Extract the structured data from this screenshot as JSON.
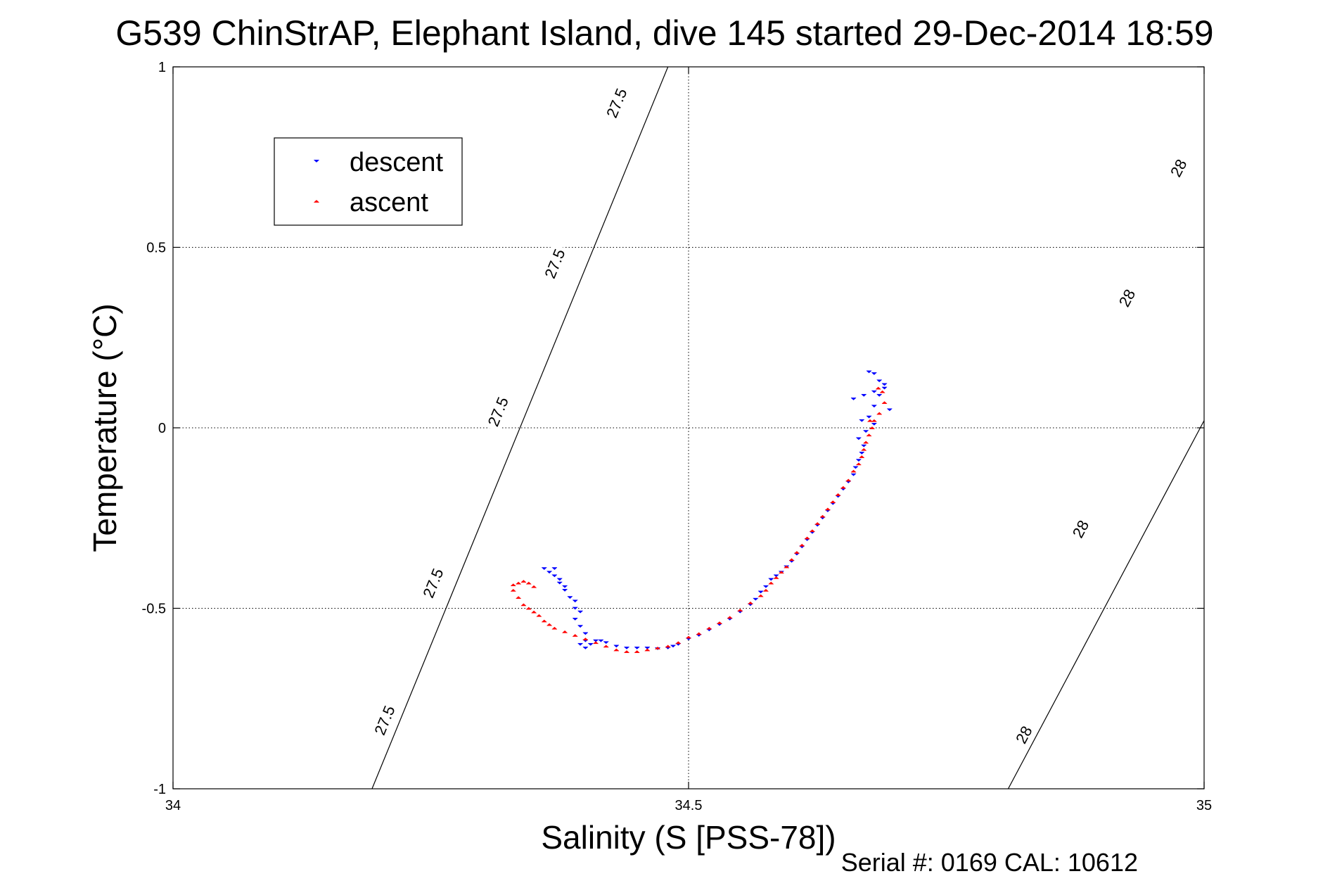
{
  "chart_data": {
    "type": "scatter",
    "title": "G539 ChinStrAP, Elephant Island, dive 145 started 29-Dec-2014 18:59",
    "xlabel": "Salinity (S [PSS-78])",
    "ylabel": "Temperature (°C)",
    "xlim": [
      34,
      35
    ],
    "ylim": [
      -1,
      1
    ],
    "x_ticks": [
      34,
      34.5,
      35
    ],
    "x_tick_labels": [
      "34",
      "34.5",
      "35"
    ],
    "y_ticks": [
      -1,
      -0.5,
      0,
      0.5,
      1
    ],
    "y_tick_labels": [
      "-1",
      "-0.5",
      "0",
      "0.5",
      "1"
    ],
    "grid": true,
    "legend_position": "top-left",
    "footer": "Serial #: 0169 CAL: 10612",
    "series": [
      {
        "name": "descent",
        "color": "#0000ff",
        "marker": "triangle-down",
        "points": [
          [
            34.36,
            -0.39
          ],
          [
            34.37,
            -0.39
          ],
          [
            34.365,
            -0.4
          ],
          [
            34.37,
            -0.41
          ],
          [
            34.375,
            -0.42
          ],
          [
            34.375,
            -0.43
          ],
          [
            34.38,
            -0.44
          ],
          [
            34.38,
            -0.45
          ],
          [
            34.385,
            -0.47
          ],
          [
            34.39,
            -0.48
          ],
          [
            34.39,
            -0.5
          ],
          [
            34.395,
            -0.51
          ],
          [
            34.39,
            -0.53
          ],
          [
            34.395,
            -0.55
          ],
          [
            34.4,
            -0.57
          ],
          [
            34.4,
            -0.59
          ],
          [
            34.395,
            -0.6
          ],
          [
            34.4,
            -0.61
          ],
          [
            34.405,
            -0.6
          ],
          [
            34.41,
            -0.59
          ],
          [
            34.415,
            -0.59
          ],
          [
            34.42,
            -0.595
          ],
          [
            34.43,
            -0.605
          ],
          [
            34.44,
            -0.61
          ],
          [
            34.45,
            -0.61
          ],
          [
            34.46,
            -0.61
          ],
          [
            34.47,
            -0.612
          ],
          [
            34.48,
            -0.61
          ],
          [
            34.485,
            -0.605
          ],
          [
            34.49,
            -0.6
          ],
          [
            34.5,
            -0.585
          ],
          [
            34.51,
            -0.575
          ],
          [
            34.52,
            -0.56
          ],
          [
            34.53,
            -0.545
          ],
          [
            34.54,
            -0.53
          ],
          [
            34.55,
            -0.51
          ],
          [
            34.56,
            -0.49
          ],
          [
            34.565,
            -0.475
          ],
          [
            34.57,
            -0.455
          ],
          [
            34.575,
            -0.44
          ],
          [
            34.58,
            -0.42
          ],
          [
            34.585,
            -0.41
          ],
          [
            34.59,
            -0.4
          ],
          [
            34.595,
            -0.385
          ],
          [
            34.6,
            -0.37
          ],
          [
            34.605,
            -0.35
          ],
          [
            34.61,
            -0.33
          ],
          [
            34.615,
            -0.31
          ],
          [
            34.62,
            -0.29
          ],
          [
            34.625,
            -0.27
          ],
          [
            34.63,
            -0.25
          ],
          [
            34.635,
            -0.23
          ],
          [
            34.64,
            -0.21
          ],
          [
            34.645,
            -0.19
          ],
          [
            34.65,
            -0.17
          ],
          [
            34.655,
            -0.15
          ],
          [
            34.66,
            -0.13
          ],
          [
            34.662,
            -0.11
          ],
          [
            34.665,
            -0.09
          ],
          [
            34.668,
            -0.07
          ],
          [
            34.67,
            -0.05
          ],
          [
            34.665,
            -0.03
          ],
          [
            34.672,
            -0.01
          ],
          [
            34.668,
            0.02
          ],
          [
            34.66,
            0.08
          ],
          [
            34.675,
            0.03
          ],
          [
            34.68,
            0.01
          ],
          [
            34.68,
            0.06
          ],
          [
            34.685,
            0.09
          ],
          [
            34.69,
            0.11
          ],
          [
            34.685,
            0.13
          ],
          [
            34.68,
            0.15
          ],
          [
            34.675,
            0.155
          ],
          [
            34.69,
            0.12
          ],
          [
            34.695,
            0.05
          ],
          [
            34.68,
            0.1
          ],
          [
            34.67,
            0.09
          ]
        ]
      },
      {
        "name": "ascent",
        "color": "#ff0000",
        "marker": "triangle-up",
        "points": [
          [
            34.33,
            -0.435
          ],
          [
            34.335,
            -0.43
          ],
          [
            34.34,
            -0.425
          ],
          [
            34.345,
            -0.43
          ],
          [
            34.35,
            -0.44
          ],
          [
            34.33,
            -0.45
          ],
          [
            34.335,
            -0.47
          ],
          [
            34.34,
            -0.49
          ],
          [
            34.345,
            -0.5
          ],
          [
            34.35,
            -0.51
          ],
          [
            34.355,
            -0.52
          ],
          [
            34.36,
            -0.535
          ],
          [
            34.365,
            -0.545
          ],
          [
            34.37,
            -0.555
          ],
          [
            34.38,
            -0.565
          ],
          [
            34.39,
            -0.575
          ],
          [
            34.4,
            -0.585
          ],
          [
            34.41,
            -0.595
          ],
          [
            34.42,
            -0.605
          ],
          [
            34.43,
            -0.615
          ],
          [
            34.44,
            -0.62
          ],
          [
            34.45,
            -0.62
          ],
          [
            34.46,
            -0.615
          ],
          [
            34.47,
            -0.61
          ],
          [
            34.48,
            -0.605
          ],
          [
            34.49,
            -0.595
          ],
          [
            34.5,
            -0.58
          ],
          [
            34.51,
            -0.57
          ],
          [
            34.52,
            -0.555
          ],
          [
            34.53,
            -0.54
          ],
          [
            34.54,
            -0.525
          ],
          [
            34.55,
            -0.505
          ],
          [
            34.56,
            -0.485
          ],
          [
            34.57,
            -0.465
          ],
          [
            34.575,
            -0.45
          ],
          [
            34.58,
            -0.43
          ],
          [
            34.585,
            -0.415
          ],
          [
            34.59,
            -0.4
          ],
          [
            34.595,
            -0.385
          ],
          [
            34.6,
            -0.365
          ],
          [
            34.605,
            -0.345
          ],
          [
            34.61,
            -0.325
          ],
          [
            34.615,
            -0.305
          ],
          [
            34.62,
            -0.285
          ],
          [
            34.625,
            -0.265
          ],
          [
            34.63,
            -0.245
          ],
          [
            34.635,
            -0.225
          ],
          [
            34.64,
            -0.205
          ],
          [
            34.645,
            -0.185
          ],
          [
            34.65,
            -0.165
          ],
          [
            34.655,
            -0.145
          ],
          [
            34.66,
            -0.12
          ],
          [
            34.665,
            -0.1
          ],
          [
            34.668,
            -0.08
          ],
          [
            34.67,
            -0.06
          ],
          [
            34.672,
            -0.04
          ],
          [
            34.675,
            -0.02
          ],
          [
            34.678,
            0.0
          ],
          [
            34.68,
            0.02
          ],
          [
            34.685,
            0.04
          ],
          [
            34.69,
            0.07
          ],
          [
            34.688,
            0.1
          ],
          [
            34.684,
            0.11
          ],
          [
            34.676,
            0.02
          ]
        ]
      }
    ],
    "contours": [
      {
        "label": "27.5",
        "points": [
          [
            34.193,
            -1.0
          ],
          [
            34.48,
            1.0
          ]
        ],
        "label_positions": [
          [
            34.205,
            -0.81
          ],
          [
            34.252,
            -0.43
          ],
          [
            34.315,
            0.045
          ],
          [
            34.37,
            0.455
          ],
          [
            34.43,
            0.9
          ]
        ]
      },
      {
        "label": "28",
        "points": [
          [
            34.81,
            -1.0
          ],
          [
            35.0,
            0.02
          ]
        ],
        "label_positions": [
          [
            34.825,
            -0.85
          ],
          [
            34.88,
            -0.28
          ],
          [
            34.925,
            0.36
          ],
          [
            34.975,
            0.72
          ]
        ]
      }
    ]
  }
}
